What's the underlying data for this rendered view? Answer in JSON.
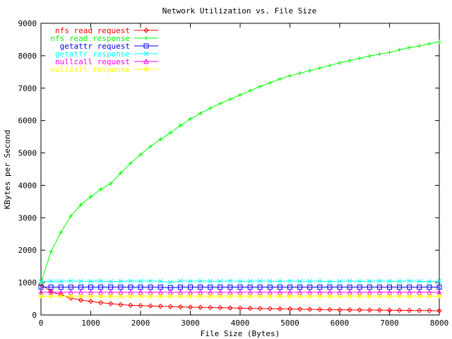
{
  "chart_data": {
    "type": "line",
    "title": "Network Utilization vs. File Size",
    "xlabel": "File Size (Bytes)",
    "ylabel": "KBytes per Second",
    "xlim": [
      0,
      8000
    ],
    "ylim": [
      0,
      9000
    ],
    "xticks": [
      0,
      1000,
      2000,
      3000,
      4000,
      5000,
      6000,
      7000,
      8000
    ],
    "yticks": [
      0,
      1000,
      2000,
      3000,
      4000,
      5000,
      6000,
      7000,
      8000,
      9000
    ],
    "grid": false,
    "legend_position": "top-left",
    "x": [
      0,
      200,
      400,
      600,
      800,
      1000,
      1200,
      1400,
      1600,
      1800,
      2000,
      2200,
      2400,
      2600,
      2800,
      3000,
      3200,
      3400,
      3600,
      3800,
      4000,
      4200,
      4400,
      4600,
      4800,
      5000,
      5200,
      5400,
      5600,
      5800,
      6000,
      6200,
      6400,
      6600,
      6800,
      7000,
      7200,
      7400,
      7600,
      7800,
      8000
    ],
    "series": [
      {
        "name": "nfs read request",
        "color": "#ff0000",
        "marker": "diamond",
        "values": [
          950,
          720,
          620,
          520,
          460,
          420,
          380,
          350,
          320,
          300,
          290,
          280,
          270,
          260,
          250,
          240,
          235,
          230,
          225,
          220,
          210,
          205,
          200,
          195,
          190,
          185,
          180,
          175,
          170,
          165,
          160,
          158,
          155,
          152,
          150,
          145,
          143,
          140,
          138,
          135,
          130
        ]
      },
      {
        "name": "nfs read response",
        "color": "#00ff00",
        "marker": "plus",
        "values": [
          1000,
          1950,
          2550,
          3050,
          3400,
          3650,
          3880,
          4050,
          4380,
          4680,
          4950,
          5200,
          5420,
          5620,
          5850,
          6050,
          6220,
          6380,
          6520,
          6660,
          6790,
          6920,
          7050,
          7160,
          7280,
          7380,
          7460,
          7540,
          7620,
          7700,
          7780,
          7850,
          7920,
          7990,
          8050,
          8100,
          8180,
          8250,
          8300,
          8370,
          8430
        ]
      },
      {
        "name": "getattr request",
        "color": "#0000ff",
        "marker": "square",
        "values": [
          860,
          860,
          860,
          860,
          860,
          860,
          860,
          860,
          860,
          860,
          860,
          860,
          860,
          840,
          860,
          860,
          860,
          860,
          860,
          860,
          860,
          860,
          860,
          860,
          860,
          860,
          860,
          860,
          860,
          860,
          860,
          860,
          860,
          860,
          860,
          860,
          860,
          860,
          860,
          860,
          860
        ]
      },
      {
        "name": "getattr response",
        "color": "#00ffff",
        "marker": "cross",
        "values": [
          1030,
          1040,
          1040,
          1050,
          1040,
          1040,
          1050,
          1030,
          1040,
          1050,
          1040,
          1050,
          1040,
          1010,
          1050,
          1040,
          1050,
          1040,
          1040,
          1050,
          1040,
          1040,
          1050,
          1040,
          1040,
          1050,
          1040,
          1040,
          1050,
          1030,
          1040,
          1050,
          1040,
          1040,
          1050,
          1040,
          1040,
          1050,
          1040,
          1030,
          1040
        ]
      },
      {
        "name": "nullcall request",
        "color": "#ff00ff",
        "marker": "triangle",
        "values": [
          700,
          700,
          700,
          700,
          700,
          700,
          700,
          700,
          700,
          700,
          700,
          700,
          700,
          700,
          700,
          700,
          700,
          700,
          700,
          700,
          700,
          700,
          700,
          700,
          700,
          700,
          700,
          700,
          700,
          700,
          700,
          700,
          700,
          700,
          700,
          700,
          700,
          700,
          700,
          700,
          700
        ]
      },
      {
        "name": "nullcall response",
        "color": "#ffff00",
        "marker": "star",
        "values": [
          580,
          580,
          580,
          580,
          580,
          580,
          580,
          580,
          580,
          580,
          580,
          580,
          580,
          580,
          580,
          580,
          580,
          580,
          580,
          580,
          580,
          580,
          580,
          580,
          580,
          580,
          580,
          580,
          580,
          580,
          580,
          580,
          580,
          580,
          580,
          580,
          580,
          580,
          580,
          580,
          580
        ]
      }
    ]
  }
}
